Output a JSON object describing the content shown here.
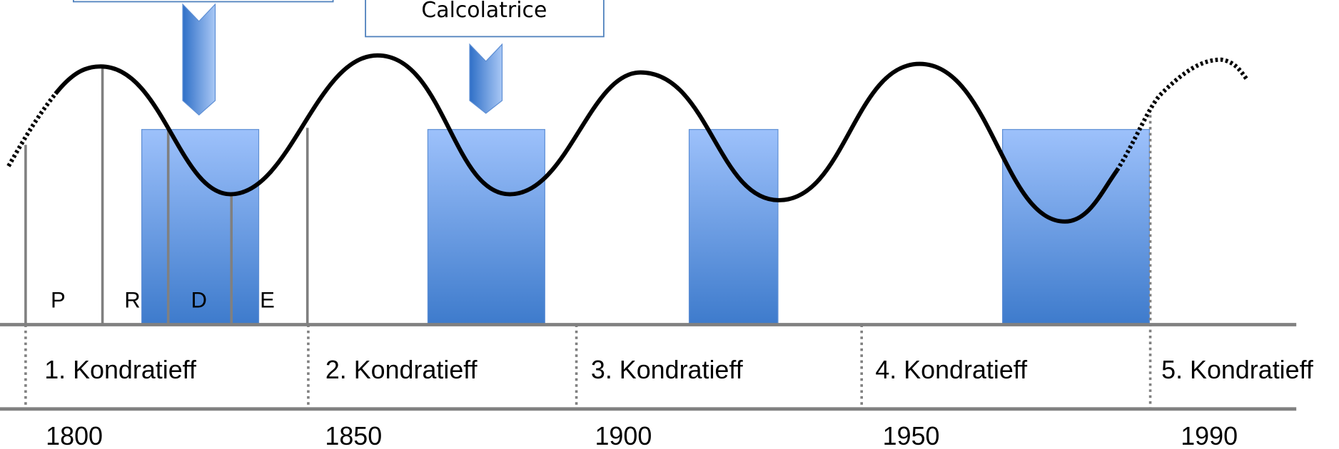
{
  "callout": {
    "label": "Calcolatrice"
  },
  "phases": [
    "P",
    "R",
    "D",
    "E"
  ],
  "waves": [
    "1. Kondratieff",
    "2. Kondratieff",
    "3. Kondratieff",
    "4. Kondratieff",
    "5. Kondratieff"
  ],
  "years": [
    "1800",
    "1850",
    "1900",
    "1950",
    "1990"
  ]
}
